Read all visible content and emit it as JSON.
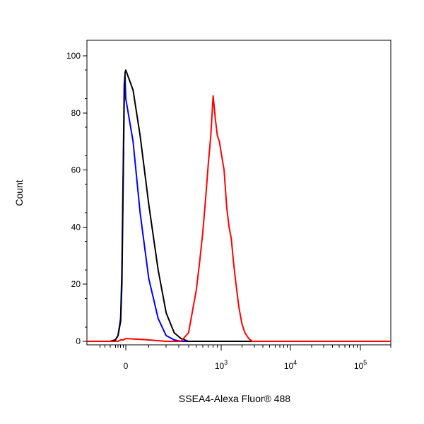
{
  "chart_data": {
    "type": "line",
    "title": "",
    "xlabel": "SSEA4-Alexa Fluor® 488",
    "ylabel": "Count",
    "x_scale": "biexponential",
    "xlim": [
      -1500,
      200000
    ],
    "ylim": [
      0,
      100
    ],
    "grid": false,
    "legend": "none",
    "y_ticks": [
      0,
      20,
      40,
      60,
      80,
      100
    ],
    "x_ticks": [
      {
        "value": 0,
        "label": "0",
        "exp": ""
      },
      {
        "value": 1000,
        "label": "10",
        "exp": "3"
      },
      {
        "value": 10000,
        "label": "10",
        "exp": "4"
      },
      {
        "value": 100000,
        "label": "10",
        "exp": "5"
      }
    ],
    "series": [
      {
        "color": "#0000ff",
        "x": [
          -1500,
          -600,
          -400,
          -300,
          -200,
          -150,
          -100,
          -60,
          -30,
          0,
          30,
          60,
          100,
          150,
          200,
          260,
          320,
          400,
          600,
          200000
        ],
        "y": [
          0,
          0,
          0.5,
          2,
          8,
          25,
          60,
          90,
          93,
          85,
          70,
          45,
          22,
          8,
          2,
          0.5,
          0,
          0,
          0,
          0
        ]
      },
      {
        "color": "#000000",
        "x": [
          -1500,
          -600,
          -400,
          -300,
          -200,
          -150,
          -100,
          -60,
          -30,
          0,
          30,
          60,
          100,
          150,
          200,
          260,
          320,
          400,
          600,
          200000
        ],
        "y": [
          0,
          0,
          0.5,
          2,
          7,
          20,
          55,
          85,
          94,
          95,
          88,
          72,
          48,
          25,
          10,
          3,
          1,
          0,
          0,
          0
        ]
      },
      {
        "color": "#ff0000",
        "x": [
          -1500,
          -300,
          -200,
          -100,
          0,
          100,
          200,
          320,
          400,
          500,
          550,
          600,
          650,
          700,
          750,
          800,
          850,
          900,
          950,
          1000,
          1100,
          1200,
          1300,
          1400,
          1500,
          1600,
          1800,
          2000,
          2200,
          2500,
          2800,
          3200,
          200000
        ],
        "y": [
          0,
          0,
          0.5,
          0.5,
          1,
          0.5,
          0,
          0,
          3,
          18,
          28,
          38,
          50,
          62,
          72,
          86,
          78,
          72,
          70,
          66,
          60,
          47,
          40,
          36,
          28,
          22,
          12,
          6,
          3,
          1,
          0,
          0,
          0
        ]
      }
    ]
  }
}
